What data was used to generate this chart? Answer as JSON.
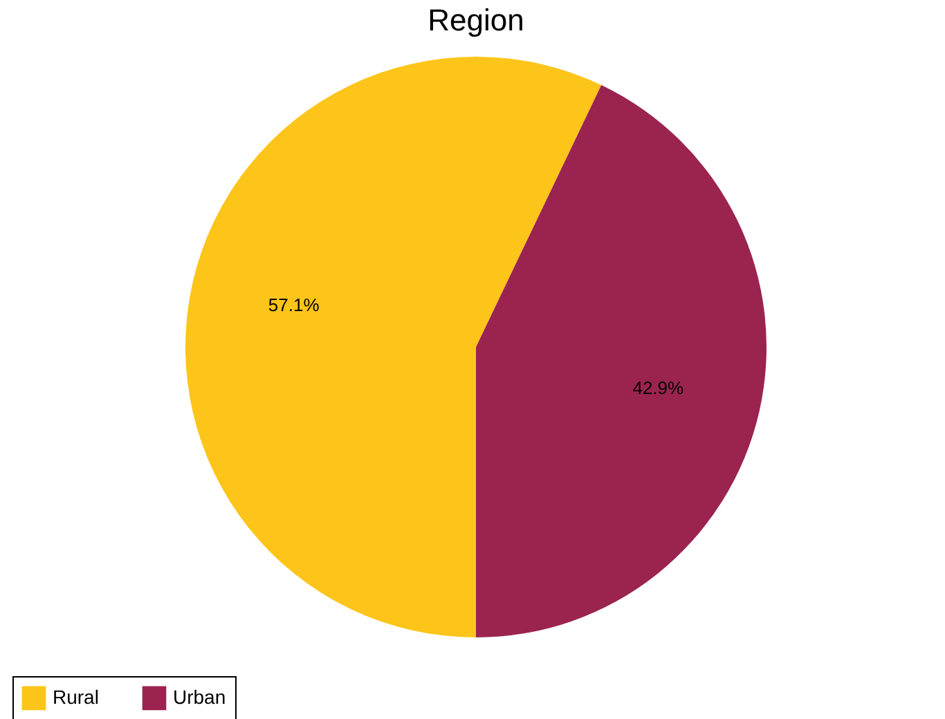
{
  "chart_data": {
    "type": "pie",
    "title": "Region",
    "categories": [
      "Rural",
      "Urban"
    ],
    "values": [
      57.1,
      42.9
    ],
    "colors": [
      "#fdc51a",
      "#9b2350"
    ],
    "value_labels": [
      "57.1%",
      "42.9%"
    ],
    "legend": "bottom"
  }
}
